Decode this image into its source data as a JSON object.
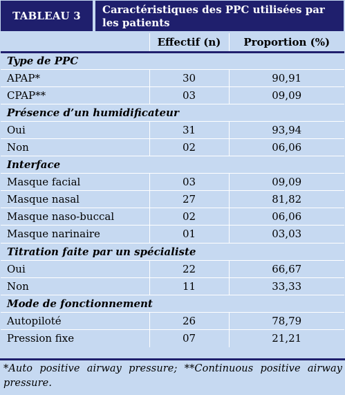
{
  "header": {
    "tag": "TABLEAU 3",
    "title_line1": "Caractéristiques des PPC utilisées par",
    "title_line2": "les patients"
  },
  "columns": {
    "effectif": "Effectif (n)",
    "proportion": "Proportion (%)"
  },
  "sections": [
    {
      "title": "Type de PPC",
      "rows": [
        {
          "label": "APAP*",
          "n": "30",
          "pct": "90,91"
        },
        {
          "label": "CPAP**",
          "n": "03",
          "pct": "09,09"
        }
      ]
    },
    {
      "title": "Présence d’un humidificateur",
      "rows": [
        {
          "label": "Oui",
          "n": "31",
          "pct": "93,94"
        },
        {
          "label": "Non",
          "n": "02",
          "pct": "06,06"
        }
      ]
    },
    {
      "title": "Interface",
      "rows": [
        {
          "label": "Masque facial",
          "n": "03",
          "pct": "09,09"
        },
        {
          "label": "Masque nasal",
          "n": "27",
          "pct": "81,82"
        },
        {
          "label": "Masque naso-buccal",
          "n": "02",
          "pct": "06,06"
        },
        {
          "label": "Masque narinaire",
          "n": "01",
          "pct": "03,03"
        }
      ]
    },
    {
      "title": "Titration faite par un spécialiste",
      "rows": [
        {
          "label": "Oui",
          "n": "22",
          "pct": "66,67"
        },
        {
          "label": "Non",
          "n": "11",
          "pct": "33,33"
        }
      ]
    },
    {
      "title": "Mode de fonctionnement",
      "rows": [
        {
          "label": "Autopiloté",
          "n": "26",
          "pct": "78,79"
        },
        {
          "label": "Pression fixe",
          "n": "07",
          "pct": "21,21"
        }
      ]
    }
  ],
  "footnote": "*Auto positive airway pressure; **Continuous positive airway pressure.",
  "colors": {
    "header_bg": "#1f1f6d",
    "table_bg": "#c6d9f1",
    "rule": "#ffffff"
  }
}
